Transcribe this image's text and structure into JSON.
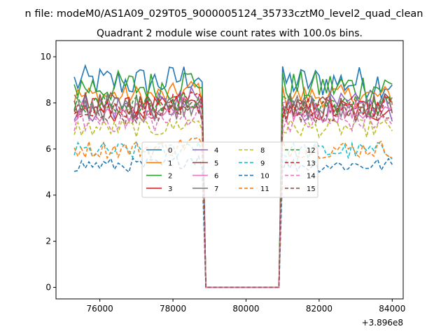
{
  "chart_data": {
    "type": "line",
    "suptitle": "n file: modeM0/AS1A09_029T05_9000005124_35733cztM0_level2_quad_clean",
    "title": "Quadrant 2 module wise count rates with 100.0s bins.",
    "xlabel": "",
    "ylabel": "",
    "x_offset_label": "+3.896e8",
    "xlim": [
      74800,
      84300
    ],
    "ylim": [
      -0.5,
      10.7
    ],
    "xticks": [
      76000,
      78000,
      80000,
      82000,
      84000
    ],
    "yticks": [
      0,
      2,
      4,
      6,
      8,
      10
    ],
    "xtick_labels": [
      "76000",
      "78000",
      "80000",
      "82000",
      "84000"
    ],
    "ytick_labels": [
      "0",
      "2",
      "4",
      "6",
      "8",
      "10"
    ],
    "grid": false,
    "legend_position": "center",
    "legend_ncols": 4,
    "gap": {
      "off_start": 78800,
      "off_end": 81000,
      "value": 0
    },
    "time_range": {
      "start": 75300,
      "end": 84000,
      "bin": 100
    },
    "series": [
      {
        "name": "0",
        "color": "#1f77b4",
        "style": "solid",
        "mean": 8.9,
        "noise": 0.45
      },
      {
        "name": "1",
        "color": "#ff7f0e",
        "style": "solid",
        "mean": 8.3,
        "noise": 0.3
      },
      {
        "name": "2",
        "color": "#2ca02c",
        "style": "solid",
        "mean": 8.7,
        "noise": 0.45
      },
      {
        "name": "3",
        "color": "#d62728",
        "style": "solid",
        "mean": 7.7,
        "noise": 0.35
      },
      {
        "name": "4",
        "color": "#9467bd",
        "style": "solid",
        "mean": 7.8,
        "noise": 0.4
      },
      {
        "name": "5",
        "color": "#8c564b",
        "style": "solid",
        "mean": 7.9,
        "noise": 0.35
      },
      {
        "name": "6",
        "color": "#e377c2",
        "style": "solid",
        "mean": 7.6,
        "noise": 0.3
      },
      {
        "name": "7",
        "color": "#7f7f7f",
        "style": "solid",
        "mean": 7.8,
        "noise": 0.4
      },
      {
        "name": "8",
        "color": "#bcbd22",
        "style": "dashed",
        "mean": 6.9,
        "noise": 0.25
      },
      {
        "name": "9",
        "color": "#17becf",
        "style": "dashed",
        "mean": 5.9,
        "noise": 0.25
      },
      {
        "name": "10",
        "color": "#1f77b4",
        "style": "dashed",
        "mean": 5.3,
        "noise": 0.2
      },
      {
        "name": "11",
        "color": "#ff7f0e",
        "style": "dashed",
        "mean": 6.0,
        "noise": 0.25
      },
      {
        "name": "12",
        "color": "#2ca02c",
        "style": "dashed",
        "mean": 7.9,
        "noise": 0.3
      },
      {
        "name": "13",
        "color": "#d62728",
        "style": "dashed",
        "mean": 7.8,
        "noise": 0.3
      },
      {
        "name": "14",
        "color": "#e377c2",
        "style": "dashed",
        "mean": 7.2,
        "noise": 0.3
      },
      {
        "name": "15",
        "color": "#8c564b",
        "style": "dashed",
        "mean": 7.6,
        "noise": 0.3
      }
    ]
  }
}
